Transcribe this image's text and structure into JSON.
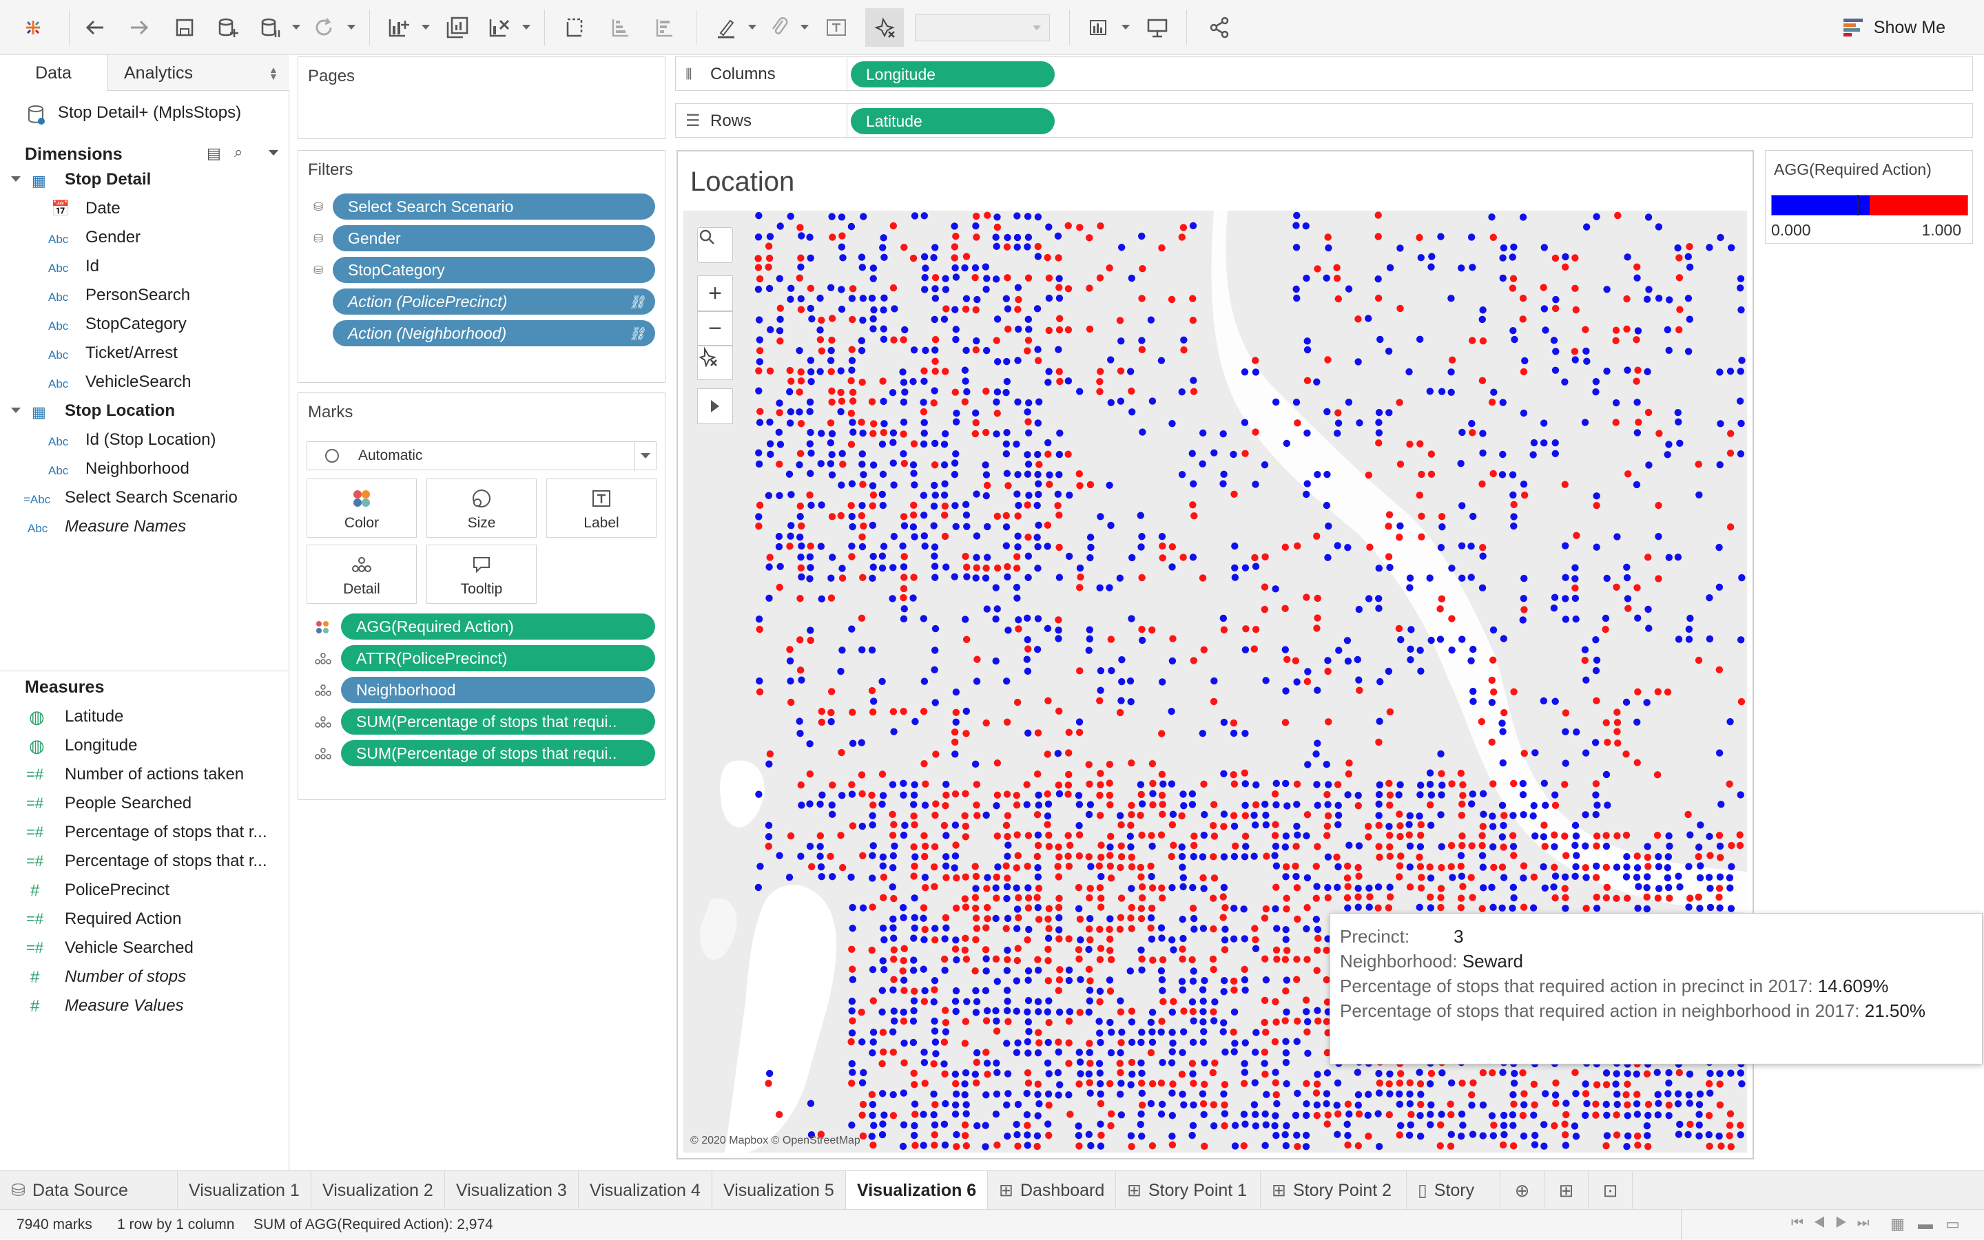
{
  "toolbar": {
    "show_me_label": "Show Me"
  },
  "data_pane": {
    "tabs": [
      "Data",
      "Analytics"
    ],
    "datasource": "Stop Detail+ (MplsStops)",
    "dimensions_title": "Dimensions",
    "groups": [
      {
        "name": "Stop Detail",
        "fields": [
          {
            "name": "Date",
            "type": "date"
          },
          {
            "name": "Gender",
            "type": "Abc"
          },
          {
            "name": "Id",
            "type": "Abc"
          },
          {
            "name": "PersonSearch",
            "type": "Abc"
          },
          {
            "name": "StopCategory",
            "type": "Abc"
          },
          {
            "name": "Ticket/Arrest",
            "type": "Abc"
          },
          {
            "name": "VehicleSearch",
            "type": "Abc"
          }
        ]
      },
      {
        "name": "Stop Location",
        "fields": [
          {
            "name": "Id (Stop Location)",
            "type": "Abc"
          },
          {
            "name": "Neighborhood",
            "type": "Abc"
          }
        ]
      }
    ],
    "select_search_scenario": "Select Search Scenario",
    "measure_names": "Measure Names",
    "measures_title": "Measures",
    "measures": [
      {
        "name": "Latitude",
        "type": "geo"
      },
      {
        "name": "Longitude",
        "type": "geo"
      },
      {
        "name": "Number of actions taken",
        "type": "calc"
      },
      {
        "name": "People Searched",
        "type": "calc"
      },
      {
        "name": "Percentage of stops that r...",
        "type": "calc"
      },
      {
        "name": "Percentage of stops that r...",
        "type": "calc"
      },
      {
        "name": "PolicePrecinct",
        "type": "num"
      },
      {
        "name": "Required Action",
        "type": "calc"
      },
      {
        "name": "Vehicle Searched",
        "type": "calc"
      },
      {
        "name": "Number of stops",
        "type": "num"
      },
      {
        "name": "Measure Values",
        "type": "num"
      }
    ]
  },
  "pages_title": "Pages",
  "filters": {
    "title": "Filters",
    "items": [
      "Select Search Scenario",
      "Gender",
      "StopCategory",
      "Action (PolicePrecinct)",
      "Action (Neighborhood)"
    ]
  },
  "marks": {
    "title": "Marks",
    "type": "Automatic",
    "buttons": [
      "Color",
      "Size",
      "Label",
      "Detail",
      "Tooltip"
    ],
    "pills": [
      "AGG(Required Action)",
      "ATTR(PolicePrecinct)",
      "Neighborhood",
      "SUM(Percentage of stops that requi..",
      "SUM(Percentage of stops that requi.."
    ]
  },
  "shelves": {
    "columns_label": "Columns",
    "columns_pill": "Longitude",
    "rows_label": "Rows",
    "rows_pill": "Latitude"
  },
  "viz": {
    "title": "Location",
    "attribution": "© 2020 Mapbox © OpenStreetMap"
  },
  "legend": {
    "title": "AGG(Required Action)",
    "min": "0.000",
    "max": "1.000",
    "low_color": "#0000ff",
    "high_color": "#ff0000"
  },
  "tooltip": {
    "precinct_label": "Precinct:",
    "precinct_value": "3",
    "neighborhood_label": "Neighborhood:",
    "neighborhood_value": "Seward",
    "precinct_pct_label": "Percentage of stops that required action in precinct in 2017:",
    "precinct_pct_value": "14.609%",
    "neighborhood_pct_label": "Percentage of stops that required action in neighborhood  in 2017:",
    "neighborhood_pct_value": "21.50%"
  },
  "sheet_tabs": [
    "Data Source",
    "Visualization 1",
    "Visualization 2",
    "Visualization 3",
    "Visualization 4",
    "Visualization 5",
    "Visualization 6",
    "Dashboard",
    "Story Point 1",
    "Story Point 2",
    "Story"
  ],
  "active_tab": "Visualization 6",
  "status": {
    "marks": "7940 marks",
    "layout": "1 row by 1 column",
    "sum": "SUM of AGG(Required Action): 2,974"
  }
}
